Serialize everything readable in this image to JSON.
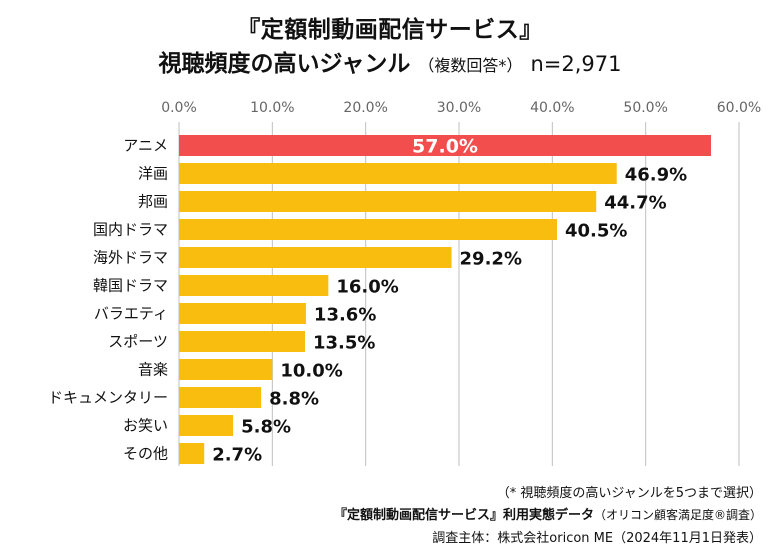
{
  "title": {
    "line1": "『定額制動画配信サービス』",
    "line2_main": "視聴頻度の高いジャンル",
    "line2_sub": "（複数回答*）",
    "line2_n": "n=2,971"
  },
  "notes": {
    "line1": "（* 視聴頻度の高いジャンルを5つまで選択）",
    "line2_main": "『定額制動画配信サービス』利用実態データ",
    "line2_sub": "（オリコン顧客満足度®調査）",
    "line3": "調査主体：株式会社oricon ME（2024年11月1日発表）"
  },
  "colors": {
    "highlight": "#f24e4e",
    "bar": "#f8bd0e",
    "grid": "#bfbfbf",
    "axis_text": "#666666"
  },
  "chart_data": {
    "type": "bar",
    "orientation": "horizontal",
    "categories": [
      "アニメ",
      "洋画",
      "邦画",
      "国内ドラマ",
      "海外ドラマ",
      "韓国ドラマ",
      "バラエティ",
      "スポーツ",
      "音楽",
      "ドキュメンタリー",
      "お笑い",
      "その他"
    ],
    "values": [
      57.0,
      46.9,
      44.7,
      40.5,
      29.2,
      16.0,
      13.6,
      13.5,
      10.0,
      8.8,
      5.8,
      2.7
    ],
    "value_labels": [
      "57.0%",
      "46.9%",
      "44.7%",
      "40.5%",
      "29.2%",
      "16.0%",
      "13.6%",
      "13.5%",
      "10.0%",
      "8.8%",
      "5.8%",
      "2.7%"
    ],
    "xlim": [
      0,
      60
    ],
    "xticks": [
      "0.0%",
      "10.0%",
      "20.0%",
      "30.0%",
      "40.0%",
      "50.0%",
      "60.0%"
    ],
    "x_axis_position": "top",
    "grid": true,
    "highlight_index": 0
  }
}
